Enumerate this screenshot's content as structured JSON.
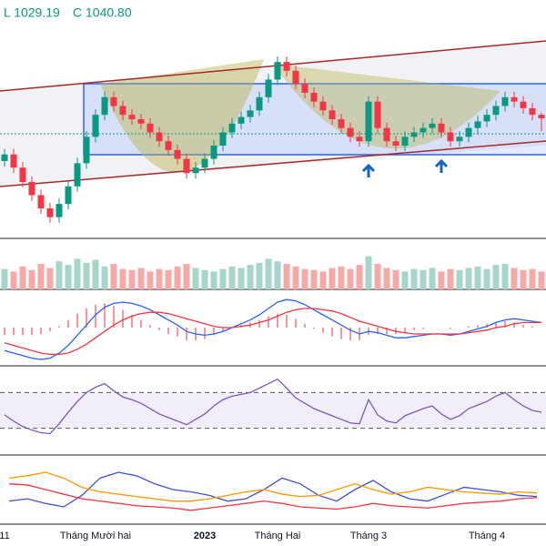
{
  "chart_data": [
    {
      "type": "candlestick",
      "labels": [
        "L 1029.19",
        "C 1040.80"
      ],
      "categories": [
        "11",
        null,
        null,
        null,
        null,
        null,
        null,
        null,
        null,
        null,
        "Tháng Mười hai",
        null,
        null,
        null,
        null,
        null,
        null,
        null,
        null,
        null,
        null,
        null,
        "2023",
        null,
        null,
        null,
        null,
        null,
        null,
        null,
        "Tháng Hai",
        null,
        null,
        null,
        null,
        null,
        null,
        null,
        null,
        null,
        "Tháng 3",
        null,
        null,
        null,
        null,
        null,
        null,
        null,
        null,
        null,
        null,
        null,
        null,
        "Tháng 4",
        null,
        null,
        null,
        null,
        null,
        null
      ],
      "open": [
        1002,
        1008,
        996,
        983,
        971,
        959,
        951,
        963,
        979,
        1000,
        1024,
        1044,
        1060,
        1052,
        1044,
        1040,
        1036,
        1028,
        1020,
        1012,
        1004,
        991,
        996,
        1004,
        1016,
        1028,
        1036,
        1042,
        1048,
        1060,
        1076,
        1092,
        1084,
        1072,
        1064,
        1056,
        1048,
        1040,
        1032,
        1024,
        1020,
        1056,
        1032,
        1020,
        1016,
        1024,
        1028,
        1032,
        1036,
        1028,
        1020,
        1024,
        1032,
        1038,
        1044,
        1052,
        1060,
        1056,
        1050,
        1044
      ],
      "high": [
        1013,
        1013,
        1001,
        988,
        976,
        964,
        968,
        984,
        1005,
        1029,
        1049,
        1065,
        1065,
        1057,
        1049,
        1045,
        1041,
        1033,
        1025,
        1017,
        1009,
        1001,
        1009,
        1021,
        1033,
        1041,
        1047,
        1053,
        1065,
        1081,
        1097,
        1097,
        1089,
        1077,
        1069,
        1061,
        1053,
        1045,
        1037,
        1029,
        1061,
        1061,
        1037,
        1025,
        1029,
        1033,
        1037,
        1041,
        1041,
        1033,
        1029,
        1037,
        1043,
        1049,
        1057,
        1065,
        1065,
        1061,
        1055,
        1046
      ],
      "low": [
        997,
        991,
        978,
        966,
        954,
        946,
        946,
        958,
        974,
        995,
        1019,
        1039,
        1047,
        1039,
        1035,
        1031,
        1023,
        1015,
        1007,
        999,
        986,
        986,
        991,
        999,
        1011,
        1023,
        1031,
        1037,
        1043,
        1055,
        1071,
        1079,
        1067,
        1059,
        1051,
        1043,
        1035,
        1027,
        1019,
        1015,
        1015,
        1027,
        1015,
        1011,
        1011,
        1019,
        1023,
        1027,
        1023,
        1015,
        1015,
        1019,
        1027,
        1033,
        1039,
        1047,
        1051,
        1045,
        1039,
        1029.19
      ],
      "close": [
        1008,
        996,
        983,
        971,
        959,
        951,
        963,
        979,
        1000,
        1024,
        1044,
        1060,
        1052,
        1044,
        1040,
        1036,
        1028,
        1020,
        1012,
        1004,
        991,
        996,
        1004,
        1016,
        1028,
        1036,
        1042,
        1048,
        1060,
        1076,
        1092,
        1084,
        1072,
        1064,
        1056,
        1048,
        1040,
        1032,
        1024,
        1020,
        1056,
        1032,
        1020,
        1016,
        1024,
        1028,
        1032,
        1036,
        1028,
        1020,
        1024,
        1032,
        1038,
        1044,
        1052,
        1060,
        1056,
        1050,
        1044,
        1040.8
      ],
      "ylim": [
        935,
        1145
      ],
      "up_color": "#089981",
      "down_color": "#f23645"
    },
    {
      "type": "bar",
      "values": [
        40,
        35,
        45,
        38,
        50,
        42,
        55,
        48,
        60,
        52,
        58,
        45,
        50,
        40,
        38,
        42,
        35,
        40,
        38,
        45,
        50,
        42,
        38,
        35,
        40,
        45,
        42,
        48,
        52,
        60,
        55,
        50,
        45,
        40,
        38,
        35,
        42,
        45,
        40,
        48,
        65,
        50,
        42,
        38,
        35,
        40,
        38,
        42,
        35,
        40,
        38,
        42,
        45,
        40,
        48,
        50,
        42,
        38,
        40,
        35
      ],
      "ylim": [
        0,
        100
      ],
      "up_color": "#a5d6c9",
      "down_color": "#f7a9a7"
    },
    {
      "type": "macd",
      "histogram": {
        "color": "#f23645",
        "values": [
          -6,
          -6,
          -6,
          -6,
          -5,
          -3,
          1,
          6,
          11,
          15,
          18,
          19,
          17,
          14,
          10,
          6,
          2,
          -2,
          -5,
          -7,
          -10,
          -10,
          -9,
          -6,
          -3,
          0,
          2,
          4,
          6,
          9,
          11,
          10,
          7,
          3,
          -1,
          -4,
          -7,
          -9,
          -10,
          -10,
          -6,
          -5,
          -5,
          -5,
          -4,
          -2,
          -1,
          0,
          0,
          -1,
          0,
          1,
          2,
          3,
          4,
          5,
          4,
          2,
          1,
          0
        ]
      },
      "series": [
        {
          "color": "#2962ff",
          "values": [
            -18,
            -20,
            -22,
            -24,
            -25,
            -24,
            -20,
            -14,
            -6,
            2,
            10,
            16,
            19,
            20,
            19,
            17,
            14,
            10,
            6,
            2,
            -3,
            -5,
            -6,
            -5,
            -3,
            0,
            3,
            6,
            10,
            15,
            20,
            22,
            21,
            18,
            14,
            10,
            6,
            2,
            -2,
            -5,
            -3,
            -4,
            -6,
            -8,
            -8,
            -7,
            -6,
            -5,
            -5,
            -6,
            -5,
            -3,
            -1,
            1,
            4,
            6,
            7,
            6,
            5,
            4
          ]
        },
        {
          "color": "#f23645",
          "values": [
            -12,
            -14,
            -16,
            -18,
            -20,
            -21,
            -21,
            -20,
            -17,
            -13,
            -8,
            -3,
            2,
            6,
            9,
            11,
            12,
            12,
            11,
            9,
            7,
            5,
            3,
            1,
            0,
            0,
            1,
            2,
            4,
            6,
            9,
            12,
            14,
            15,
            15,
            14,
            13,
            11,
            8,
            5,
            3,
            1,
            -1,
            -3,
            -4,
            -5,
            -5,
            -5,
            -5,
            -5,
            -5,
            -4,
            -3,
            -2,
            0,
            1,
            3,
            4,
            4,
            4
          ]
        }
      ],
      "ylim": [
        -30,
        30
      ]
    },
    {
      "type": "line",
      "series": [
        {
          "color": "#7e57c2",
          "values": [
            45,
            38,
            32,
            28,
            25,
            24,
            35,
            48,
            60,
            70,
            76,
            80,
            72,
            65,
            62,
            58,
            52,
            46,
            42,
            38,
            34,
            40,
            46,
            55,
            62,
            66,
            68,
            70,
            75,
            80,
            85,
            75,
            64,
            58,
            52,
            48,
            44,
            40,
            36,
            35,
            62,
            45,
            38,
            36,
            44,
            48,
            52,
            55,
            46,
            40,
            44,
            52,
            56,
            60,
            66,
            70,
            62,
            55,
            50,
            48
          ]
        }
      ],
      "bands": [
        30,
        70
      ],
      "band_color": "#7e57c2",
      "ylim": [
        0,
        100
      ]
    },
    {
      "type": "line",
      "series": [
        {
          "color": "#3f51d8",
          "values": [
            20,
            22,
            18,
            15,
            25,
            40,
            45,
            42,
            35,
            30,
            28,
            25,
            20,
            22,
            30,
            40,
            35,
            25,
            20,
            30,
            38,
            28,
            22,
            20,
            26,
            32,
            30,
            28,
            25,
            24
          ]
        },
        {
          "color": "#ff9800",
          "values": [
            40,
            42,
            45,
            40,
            32,
            28,
            26,
            24,
            22,
            20,
            20,
            22,
            25,
            28,
            30,
            26,
            24,
            25,
            30,
            35,
            30,
            26,
            28,
            32,
            30,
            28,
            27,
            26,
            28,
            27
          ]
        },
        {
          "color": "#f23645",
          "values": [
            35,
            34,
            30,
            26,
            22,
            20,
            18,
            16,
            15,
            14,
            12,
            14,
            16,
            18,
            20,
            18,
            15,
            14,
            13,
            15,
            18,
            16,
            15,
            14,
            16,
            18,
            19,
            20,
            22,
            23
          ]
        }
      ],
      "ylim": [
        0,
        60
      ]
    }
  ]
}
